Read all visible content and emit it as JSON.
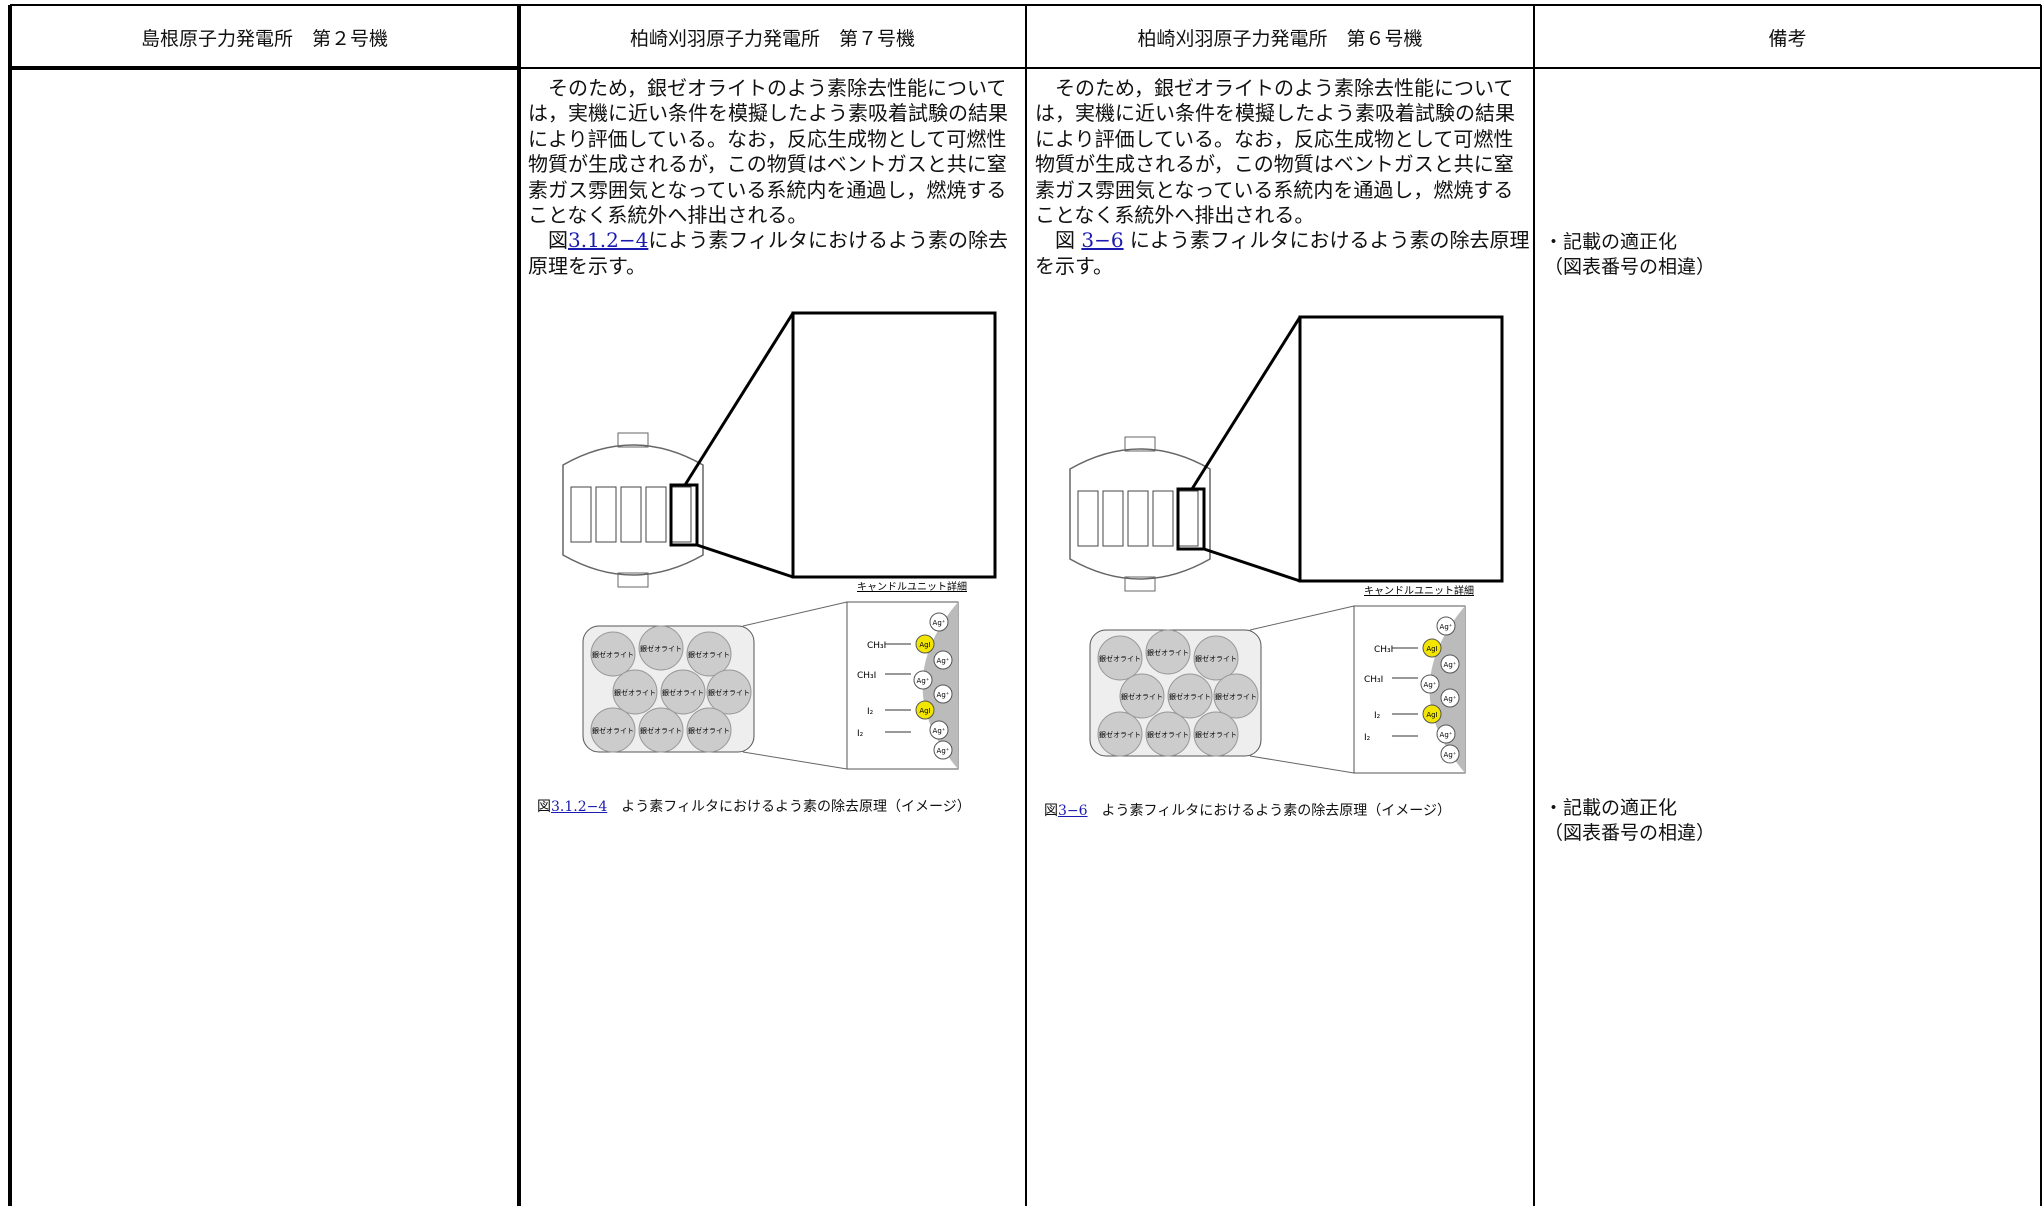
{
  "table": {
    "columns": [
      {
        "header": "島根原子力発電所　第２号機"
      },
      {
        "header": "柏崎刈羽原子力発電所　第７号機",
        "paragraph": [
          "　そのため，銀ゼオライトのよう素除去性能について",
          "は，実機に近い条件を模擬したよう素吸着試験の結果",
          "により評価している。なお，反応生成物として可燃性",
          "物質が生成されるが，この物質はベントガスと共に窒",
          "素ガス雰囲気となっている系統内を通過し，燃焼する",
          "ことなく系統外へ排出される。"
        ],
        "figure_ref": {
          "before": "　図",
          "link": "3.1.2−4",
          "after": "によう素フィルタにおけるよう素の除去",
          "continuation": "原理を示す。"
        },
        "figure": {
          "detail_title": "キャンドルユニット詳細",
          "zeolite": "銀ゼオライト",
          "ch3i": "CH₃I",
          "i2": "I₂",
          "ag": "Ag⁺",
          "agi": "AgI"
        },
        "caption": {
          "prefix": "図",
          "link": "3.1.2−4",
          "text": "　よう素フィルタにおけるよう素の除去原理（イメージ）"
        }
      },
      {
        "header": "柏崎刈羽原子力発電所　第６号機",
        "paragraph": [
          "　そのため，銀ゼオライトのよう素除去性能について",
          "は，実機に近い条件を模擬したよう素吸着試験の結果",
          "により評価している。なお，反応生成物として可燃性",
          "物質が生成されるが，この物質はベントガスと共に窒",
          "素ガス雰囲気となっている系統内を通過し，燃焼する",
          "ことなく系統外へ排出される。"
        ],
        "figure_ref": {
          "before": "　図 ",
          "link": "3−6",
          "after": " によう素フィルタにおけるよう素の除去原理",
          "continuation": "を示す。"
        },
        "figure": {
          "detail_title": "キャンドルユニット詳細",
          "zeolite": "銀ゼオライト",
          "ch3i": "CH₃I",
          "i2": "I₂",
          "ag": "Ag⁺",
          "agi": "AgI"
        },
        "caption": {
          "prefix": "図",
          "link": "3−6",
          "text": "　よう素フィルタにおけるよう素の除去原理（イメージ）"
        }
      },
      {
        "header": "備考",
        "remarks": [
          {
            "lines": [
              "・記載の適正化",
              "（図表番号の相違）"
            ]
          },
          {
            "lines": [
              "・記載の適正化",
              "（図表番号の相違）"
            ]
          }
        ]
      }
    ]
  }
}
